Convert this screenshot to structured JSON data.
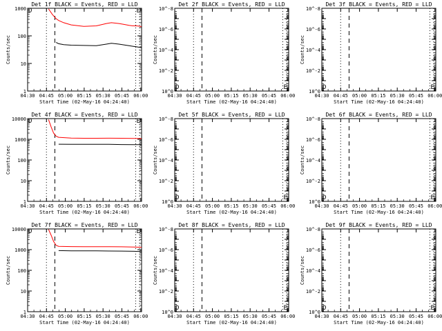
{
  "time_ticks": [
    "04:30",
    "04:45",
    "05:00",
    "05:15",
    "05:30",
    "05:45",
    "06:00"
  ],
  "xlabel": "Start Time (02-May-16 04:24:40)",
  "ylabel": "Counts/sec",
  "colors": {
    "events": "#000000",
    "lld": "#ff0000",
    "frame": "#000000"
  },
  "chart_data": [
    {
      "type": "line",
      "title": "Det 1f BLACK = Events, RED = LLD",
      "x_unit": "minutes after 04:24:40",
      "xlim": [
        5,
        96
      ],
      "ylim": [
        1,
        1000
      ],
      "yscale": "log",
      "ytick_labels": [
        "1",
        "10",
        "100",
        "1000"
      ],
      "marker_labels": [
        "D",
        "E"
      ],
      "dotted_lines_x": [
        20.3,
        91.3,
        106
      ],
      "dashed_lines_x": [
        27
      ],
      "series": [
        {
          "name": "LLD",
          "x": [
            22,
            25,
            28,
            30,
            34,
            40,
            50,
            60,
            68,
            72,
            78,
            82,
            86,
            89,
            92,
            95,
            96
          ],
          "y": [
            950,
            600,
            420,
            360,
            300,
            250,
            220,
            230,
            280,
            300,
            280,
            260,
            240,
            230,
            230,
            220,
            215
          ]
        },
        {
          "name": "Events",
          "x": [
            28,
            30,
            34,
            40,
            50,
            60,
            68,
            72,
            78,
            82,
            86,
            89,
            92,
            95,
            96
          ],
          "y": [
            58,
            52,
            48,
            46,
            45,
            44,
            50,
            54,
            50,
            47,
            44,
            42,
            40,
            38,
            37
          ]
        }
      ]
    },
    {
      "type": "line",
      "title": "Det 2f BLACK = Events, RED = LLD",
      "x_unit": "minutes after 04:24:40",
      "xlim": [
        5,
        96
      ],
      "ylim": [
        1,
        1e-08
      ],
      "yscale": "log",
      "ytick_labels": [
        "10^-8",
        "10^-6",
        "10^-4",
        "10^-2",
        "10^0"
      ],
      "marker_labels": [
        "D",
        "E"
      ],
      "dotted_lines_x": [
        20.3,
        91.3,
        106
      ],
      "dashed_lines_x": [
        27
      ],
      "series": []
    },
    {
      "type": "line",
      "title": "Det 3f BLACK = Events, RED = LLD",
      "x_unit": "minutes after 04:24:40",
      "xlim": [
        5,
        96
      ],
      "ylim": [
        1,
        1e-08
      ],
      "yscale": "log",
      "ytick_labels": [
        "10^-8",
        "10^-6",
        "10^-4",
        "10^-2",
        "10^0"
      ],
      "marker_labels": [
        "D",
        "E"
      ],
      "dotted_lines_x": [
        20.3,
        91.3,
        106
      ],
      "dashed_lines_x": [
        27
      ],
      "series": []
    },
    {
      "type": "line",
      "title": "Det 4f BLACK = Events, RED = LLD",
      "x_unit": "minutes after 04:24:40",
      "xlim": [
        5,
        96
      ],
      "ylim": [
        1,
        10000
      ],
      "yscale": "log",
      "ytick_labels": [
        "1",
        "10",
        "100",
        "1000",
        "10000"
      ],
      "marker_labels": [
        "D",
        "E"
      ],
      "dotted_lines_x": [
        20.3,
        91.3,
        106
      ],
      "dashed_lines_x": [
        27
      ],
      "series": [
        {
          "name": "LLD",
          "x": [
            22,
            24,
            26,
            28,
            30,
            40,
            50,
            60,
            70,
            80,
            90,
            96
          ],
          "y": [
            9000,
            4000,
            2000,
            1400,
            1250,
            1150,
            1120,
            1120,
            1130,
            1120,
            1100,
            1080
          ]
        },
        {
          "name": "Events",
          "x": [
            30,
            40,
            50,
            60,
            70,
            80,
            90,
            96
          ],
          "y": [
            580,
            575,
            575,
            570,
            570,
            560,
            555,
            550
          ]
        }
      ]
    },
    {
      "type": "line",
      "title": "Det 5f BLACK = Events, RED = LLD",
      "x_unit": "minutes after 04:24:40",
      "xlim": [
        5,
        96
      ],
      "ylim": [
        1,
        1e-08
      ],
      "yscale": "log",
      "ytick_labels": [
        "10^-8",
        "10^-6",
        "10^-4",
        "10^-2",
        "10^0"
      ],
      "marker_labels": [
        "D",
        "E"
      ],
      "dotted_lines_x": [
        20.3,
        91.3,
        106
      ],
      "dashed_lines_x": [
        27
      ],
      "series": []
    },
    {
      "type": "line",
      "title": "Det 6f BLACK = Events, RED = LLD",
      "x_unit": "minutes after 04:24:40",
      "xlim": [
        5,
        96
      ],
      "ylim": [
        1,
        1e-08
      ],
      "yscale": "log",
      "ytick_labels": [
        "10^-8",
        "10^-6",
        "10^-4",
        "10^-2",
        "10^0"
      ],
      "marker_labels": [
        "D",
        "E"
      ],
      "dotted_lines_x": [
        20.3,
        91.3,
        106
      ],
      "dashed_lines_x": [
        27
      ],
      "series": []
    },
    {
      "type": "line",
      "title": "Det 7f BLACK = Events, RED = LLD",
      "x_unit": "minutes after 04:24:40",
      "xlim": [
        5,
        96
      ],
      "ylim": [
        1,
        10000
      ],
      "yscale": "log",
      "ytick_labels": [
        "1",
        "10",
        "100",
        "1000",
        "10000"
      ],
      "marker_labels": [
        "D",
        "E"
      ],
      "dotted_lines_x": [
        20.3,
        91.3,
        106
      ],
      "dashed_lines_x": [
        27
      ],
      "series": [
        {
          "name": "LLD",
          "x": [
            22,
            24,
            26,
            28,
            30,
            40,
            50,
            60,
            70,
            80,
            90,
            96
          ],
          "y": [
            9500,
            5000,
            2500,
            1600,
            1450,
            1400,
            1390,
            1380,
            1380,
            1370,
            1330,
            1300
          ]
        },
        {
          "name": "Events",
          "x": [
            30,
            40,
            50,
            60,
            70,
            80,
            90,
            96
          ],
          "y": [
            900,
            880,
            880,
            870,
            860,
            850,
            830,
            800
          ]
        }
      ]
    },
    {
      "type": "line",
      "title": "Det 8f BLACK = Events, RED = LLD",
      "x_unit": "minutes after 04:24:40",
      "xlim": [
        5,
        96
      ],
      "ylim": [
        1,
        1e-08
      ],
      "yscale": "log",
      "ytick_labels": [
        "10^-8",
        "10^-6",
        "10^-4",
        "10^-2",
        "10^0"
      ],
      "marker_labels": [
        "D",
        "E"
      ],
      "dotted_lines_x": [
        20.3,
        91.3,
        106
      ],
      "dashed_lines_x": [
        27
      ],
      "series": []
    },
    {
      "type": "line",
      "title": "Det 9f BLACK = Events, RED = LLD",
      "x_unit": "minutes after 04:24:40",
      "xlim": [
        5,
        96
      ],
      "ylim": [
        1,
        1e-08
      ],
      "yscale": "log",
      "ytick_labels": [
        "10^-8",
        "10^-6",
        "10^-4",
        "10^-2",
        "10^0"
      ],
      "marker_labels": [
        "D",
        "E"
      ],
      "dotted_lines_x": [
        20.3,
        91.3,
        106
      ],
      "dashed_lines_x": [
        27
      ],
      "series": []
    }
  ]
}
